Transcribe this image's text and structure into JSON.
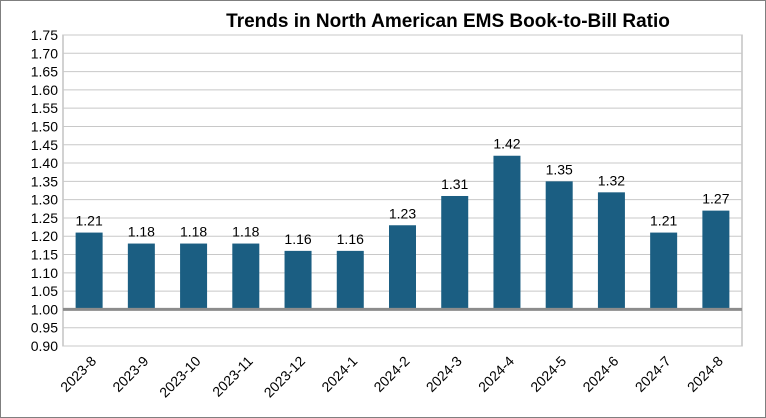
{
  "chart_data": {
    "type": "bar",
    "title": "Trends in North American EMS Book-to-Bill Ratio",
    "xlabel": "",
    "ylabel": "",
    "categories": [
      "2023-8",
      "2023-9",
      "2023-10",
      "2023-11",
      "2023-12",
      "2024-1",
      "2024-2",
      "2024-3",
      "2024-4",
      "2024-5",
      "2024-6",
      "2024-7",
      "2024-8"
    ],
    "values": [
      1.21,
      1.18,
      1.18,
      1.18,
      1.16,
      1.16,
      1.23,
      1.31,
      1.42,
      1.35,
      1.32,
      1.21,
      1.27
    ],
    "data_labels": [
      "1.21",
      "1.18",
      "1.18",
      "1.18",
      "1.16",
      "1.16",
      "1.23",
      "1.31",
      "1.42",
      "1.35",
      "1.32",
      "1.21",
      "1.27"
    ],
    "ylim": [
      0.9,
      1.75
    ],
    "baseline": 1.0,
    "yticks": [
      "0.90",
      "0.95",
      "1.00",
      "1.05",
      "1.10",
      "1.15",
      "1.20",
      "1.25",
      "1.30",
      "1.35",
      "1.40",
      "1.45",
      "1.50",
      "1.55",
      "1.60",
      "1.65",
      "1.70",
      "1.75"
    ],
    "grid": true,
    "legend": "none",
    "bar_color": "#1b5e82"
  }
}
